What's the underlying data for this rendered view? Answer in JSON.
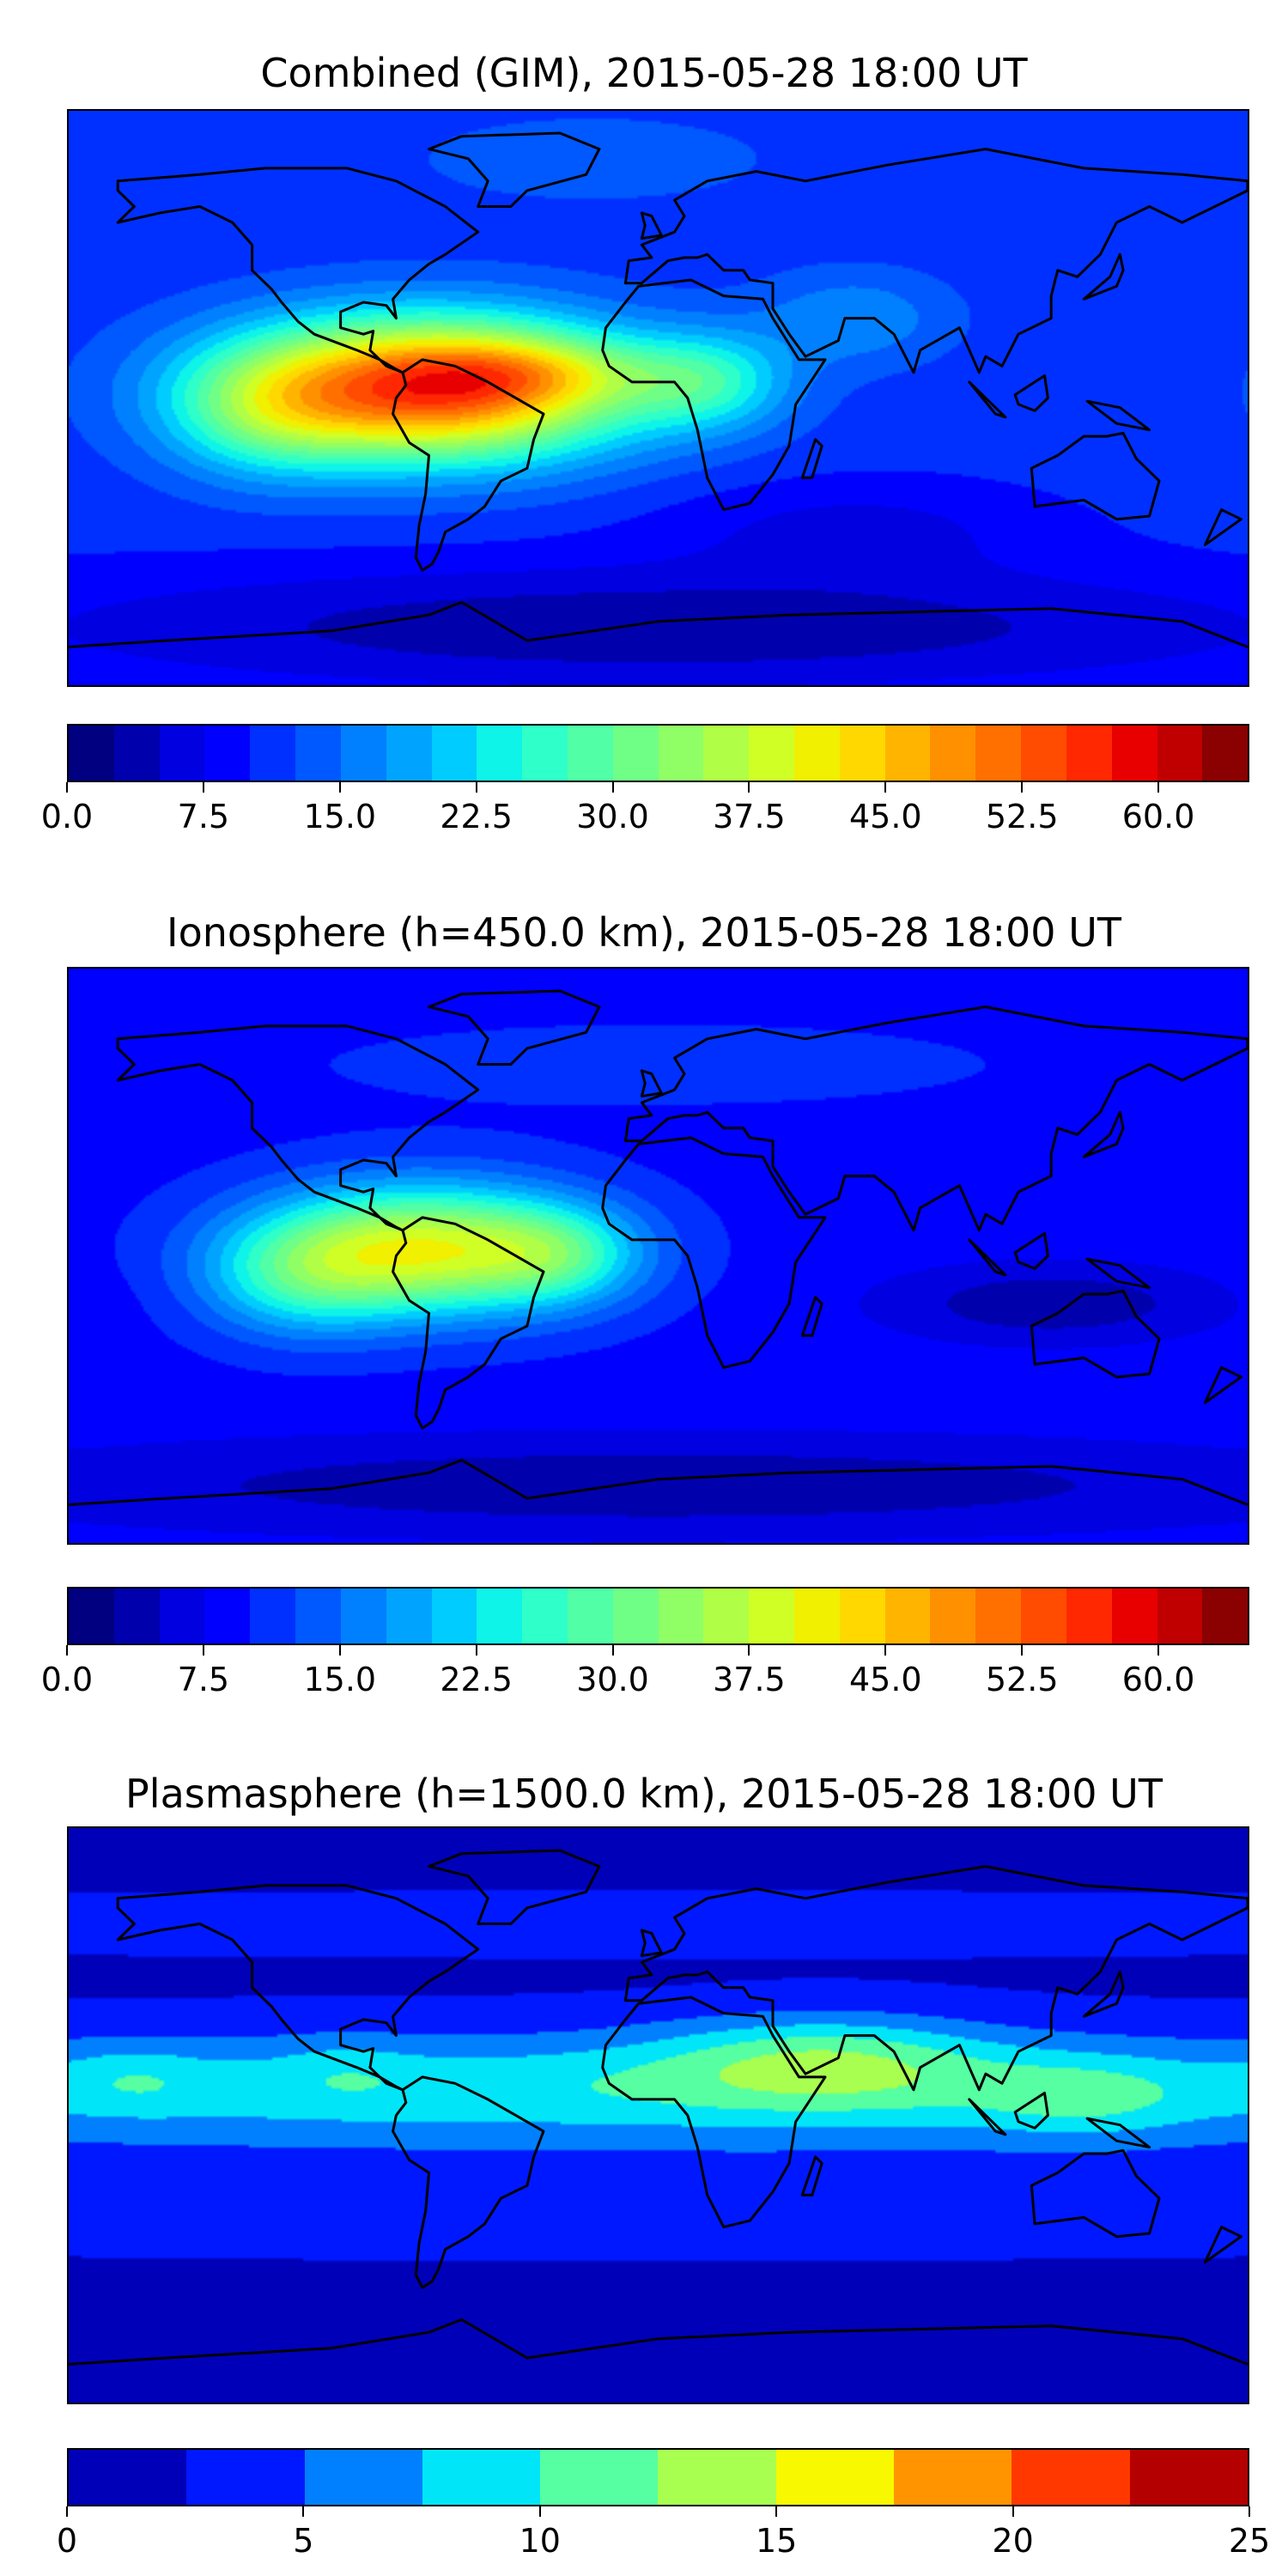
{
  "chart_data": [
    {
      "type": "heatmap",
      "title": "Combined (GIM), 2015-05-28 18:00 UT",
      "projection": "equirectangular, global",
      "colorbar": {
        "range": [
          0,
          65
        ],
        "step": 2.5,
        "ticks": [
          "0.0",
          "7.5",
          "15.0",
          "22.5",
          "30.0",
          "37.5",
          "45.0",
          "52.5",
          "60.0"
        ],
        "tick_values": [
          0,
          7.5,
          15,
          22.5,
          30,
          37.5,
          45,
          52.5,
          60
        ],
        "colors": [
          "#000080",
          "#0000ad",
          "#0000e0",
          "#0000ff",
          "#0030ff",
          "#0058ff",
          "#0080ff",
          "#00a4ff",
          "#00ccff",
          "#0ef4e8",
          "#2fffc8",
          "#50ffa6",
          "#70ff86",
          "#90ff66",
          "#b0ff46",
          "#d0ff26",
          "#f0f000",
          "#ffd800",
          "#ffb400",
          "#ff9000",
          "#ff7000",
          "#ff4c00",
          "#ff2800",
          "#e80000",
          "#c00000",
          "#8b0000"
        ]
      },
      "field": {
        "base": 11,
        "features": [
          {
            "lon": -70,
            "lat": 3,
            "rx": 60,
            "ry": 22,
            "amp": 44
          },
          {
            "lon": -40,
            "lat": 8,
            "rx": 35,
            "ry": 10,
            "amp": 8
          },
          {
            "lon": -120,
            "lat": -5,
            "rx": 30,
            "ry": 20,
            "amp": 10
          },
          {
            "lon": 15,
            "lat": 5,
            "rx": 25,
            "ry": 15,
            "amp": 12
          },
          {
            "lon": 60,
            "lat": 25,
            "rx": 30,
            "ry": 15,
            "amp": 6
          },
          {
            "lon": 0,
            "lat": -72,
            "rx": 200,
            "ry": 20,
            "amp": -8
          },
          {
            "lon": 60,
            "lat": -40,
            "rx": 60,
            "ry": 15,
            "amp": -4
          },
          {
            "lon": -20,
            "lat": 75,
            "rx": 60,
            "ry": 15,
            "amp": 3
          }
        ]
      }
    },
    {
      "type": "heatmap",
      "title": "Ionosphere  (h=450.0 km), 2015-05-28 18:00 UT",
      "projection": "equirectangular, global",
      "colorbar": {
        "range": [
          0,
          65
        ],
        "step": 2.5,
        "ticks": [
          "0.0",
          "7.5",
          "15.0",
          "22.5",
          "30.0",
          "37.5",
          "45.0",
          "52.5",
          "60.0"
        ],
        "tick_values": [
          0,
          7.5,
          15,
          22.5,
          30,
          37.5,
          45,
          52.5,
          60
        ],
        "colors": [
          "#000080",
          "#0000ad",
          "#0000e0",
          "#0000ff",
          "#0030ff",
          "#0058ff",
          "#0080ff",
          "#00a4ff",
          "#00ccff",
          "#0ef4e8",
          "#2fffc8",
          "#50ffa6",
          "#70ff86",
          "#90ff66",
          "#b0ff46",
          "#d0ff26",
          "#f0f000",
          "#ffd800",
          "#ffb400",
          "#ff9000",
          "#ff7000",
          "#ff4c00",
          "#ff2800",
          "#e80000",
          "#c00000",
          "#8b0000"
        ]
      },
      "field": {
        "base": 9,
        "features": [
          {
            "lon": -72,
            "lat": 2,
            "rx": 50,
            "ry": 20,
            "amp": 30
          },
          {
            "lon": -110,
            "lat": -8,
            "rx": 30,
            "ry": 18,
            "amp": 10
          },
          {
            "lon": -30,
            "lat": 0,
            "rx": 25,
            "ry": 15,
            "amp": 10
          },
          {
            "lon": 120,
            "lat": -15,
            "rx": 50,
            "ry": 12,
            "amp": -6
          },
          {
            "lon": 0,
            "lat": -72,
            "rx": 200,
            "ry": 15,
            "amp": -6
          },
          {
            "lon": 0,
            "lat": 60,
            "rx": 120,
            "ry": 15,
            "amp": 2
          }
        ]
      }
    },
    {
      "type": "heatmap",
      "title": "Plasmasphere (h=1500.0 km), 2015-05-28 18:00 UT",
      "projection": "equirectangular, global",
      "colorbar": {
        "range": [
          0,
          25
        ],
        "step": 2.5,
        "ticks": [
          "0",
          "5",
          "10",
          "15",
          "20",
          "25"
        ],
        "tick_values": [
          0,
          5,
          10,
          15,
          20,
          25
        ],
        "colors": [
          "#0000b8",
          "#0018ff",
          "#0080ff",
          "#00e6f8",
          "#55ffa2",
          "#a8ff50",
          "#f8f800",
          "#ff9400",
          "#ff3800",
          "#b40000"
        ]
      },
      "field": {
        "base": 2,
        "features": [
          {
            "lon": 0,
            "lat": 8,
            "rx": 400,
            "ry": 18,
            "amp": 7.5
          },
          {
            "lon": 50,
            "lat": 18,
            "rx": 50,
            "ry": 14,
            "amp": 6
          },
          {
            "lon": 130,
            "lat": 5,
            "rx": 30,
            "ry": 12,
            "amp": 3
          },
          {
            "lon": -160,
            "lat": 12,
            "rx": 20,
            "ry": 10,
            "amp": 2
          },
          {
            "lon": -95,
            "lat": 15,
            "rx": 20,
            "ry": 10,
            "amp": 1.5
          },
          {
            "lon": 0,
            "lat": -28,
            "rx": 400,
            "ry": 15,
            "amp": 2
          },
          {
            "lon": 0,
            "lat": 60,
            "rx": 400,
            "ry": 10,
            "amp": 1.5
          }
        ]
      }
    }
  ]
}
